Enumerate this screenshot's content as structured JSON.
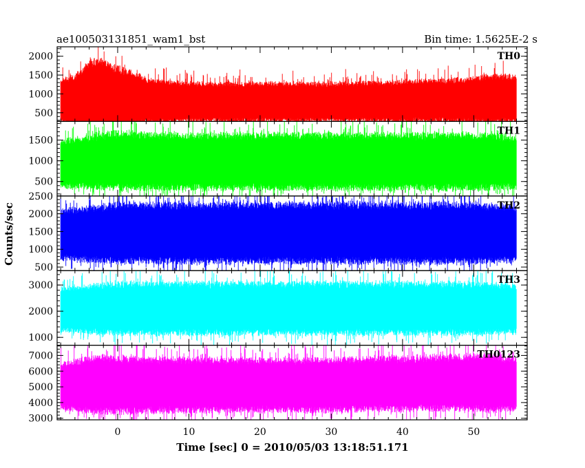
{
  "header": {
    "title": "ae100503131851_wam1_bst",
    "bin_time": "Bin time: 1.5625E-2 s"
  },
  "chart_data": {
    "type": "line",
    "xlabel": "Time [sec] 0 = 2010/05/03 13:18:51.171",
    "ylabel": "Counts/sec",
    "xlim": [
      -8.5,
      57.5
    ],
    "x_ticks": [
      0,
      10,
      20,
      30,
      40,
      50
    ],
    "x_range_data": [
      -8,
      56
    ],
    "panels": [
      {
        "name": "TH0",
        "color": "#ff0000",
        "ylim": [
          270,
          2250
        ],
        "y_ticks": [
          500,
          1000,
          1500,
          2000
        ],
        "band": [
          [
            -8,
            200,
            1400
          ],
          [
            -6,
            150,
            1500
          ],
          [
            -4,
            100,
            1900
          ],
          [
            -2,
            100,
            1900
          ],
          [
            0,
            120,
            1700
          ],
          [
            2,
            150,
            1600
          ],
          [
            4,
            200,
            1400
          ],
          [
            10,
            250,
            1300
          ],
          [
            20,
            250,
            1300
          ],
          [
            30,
            250,
            1300
          ],
          [
            40,
            250,
            1350
          ],
          [
            48,
            250,
            1400
          ],
          [
            52,
            200,
            1500
          ],
          [
            56,
            220,
            1500
          ]
        ]
      },
      {
        "name": "TH1",
        "color": "#00ff00",
        "ylim": [
          150,
          1950
        ],
        "y_ticks": [
          500,
          1000,
          1500
        ],
        "band": [
          [
            -8,
            350,
            1500
          ],
          [
            0,
            300,
            1700
          ],
          [
            10,
            300,
            1650
          ],
          [
            20,
            300,
            1650
          ],
          [
            30,
            300,
            1650
          ],
          [
            40,
            300,
            1650
          ],
          [
            50,
            300,
            1650
          ],
          [
            56,
            320,
            1600
          ]
        ]
      },
      {
        "name": "TH2",
        "color": "#0000ff",
        "ylim": [
          400,
          2500
        ],
        "y_ticks": [
          500,
          1000,
          1500,
          2000,
          2500
        ],
        "band": [
          [
            -8,
            700,
            2100
          ],
          [
            0,
            600,
            2300
          ],
          [
            10,
            600,
            2300
          ],
          [
            20,
            600,
            2300
          ],
          [
            30,
            600,
            2300
          ],
          [
            40,
            600,
            2300
          ],
          [
            50,
            600,
            2300
          ],
          [
            56,
            650,
            2200
          ]
        ]
      },
      {
        "name": "TH3",
        "color": "#00ffff",
        "ylim": [
          700,
          3550
        ],
        "y_ticks": [
          1000,
          2000,
          3000
        ],
        "band": [
          [
            -8,
            1200,
            2900
          ],
          [
            0,
            1100,
            3100
          ],
          [
            10,
            1100,
            3100
          ],
          [
            20,
            1100,
            3100
          ],
          [
            30,
            1100,
            3100
          ],
          [
            40,
            1100,
            3100
          ],
          [
            50,
            1100,
            3100
          ],
          [
            56,
            1150,
            3000
          ]
        ]
      },
      {
        "name": "TH0123",
        "color": "#ff00ff",
        "ylim": [
          2900,
          7650
        ],
        "y_ticks": [
          3000,
          4000,
          5000,
          6000,
          7000
        ],
        "band": [
          [
            -8,
            3600,
            6500
          ],
          [
            -3,
            3300,
            7000
          ],
          [
            0,
            3300,
            6900
          ],
          [
            10,
            3400,
            6800
          ],
          [
            20,
            3400,
            6800
          ],
          [
            30,
            3400,
            6800
          ],
          [
            40,
            3500,
            6900
          ],
          [
            48,
            3500,
            7000
          ],
          [
            52,
            3400,
            7100
          ],
          [
            56,
            3500,
            6800
          ]
        ]
      }
    ]
  }
}
